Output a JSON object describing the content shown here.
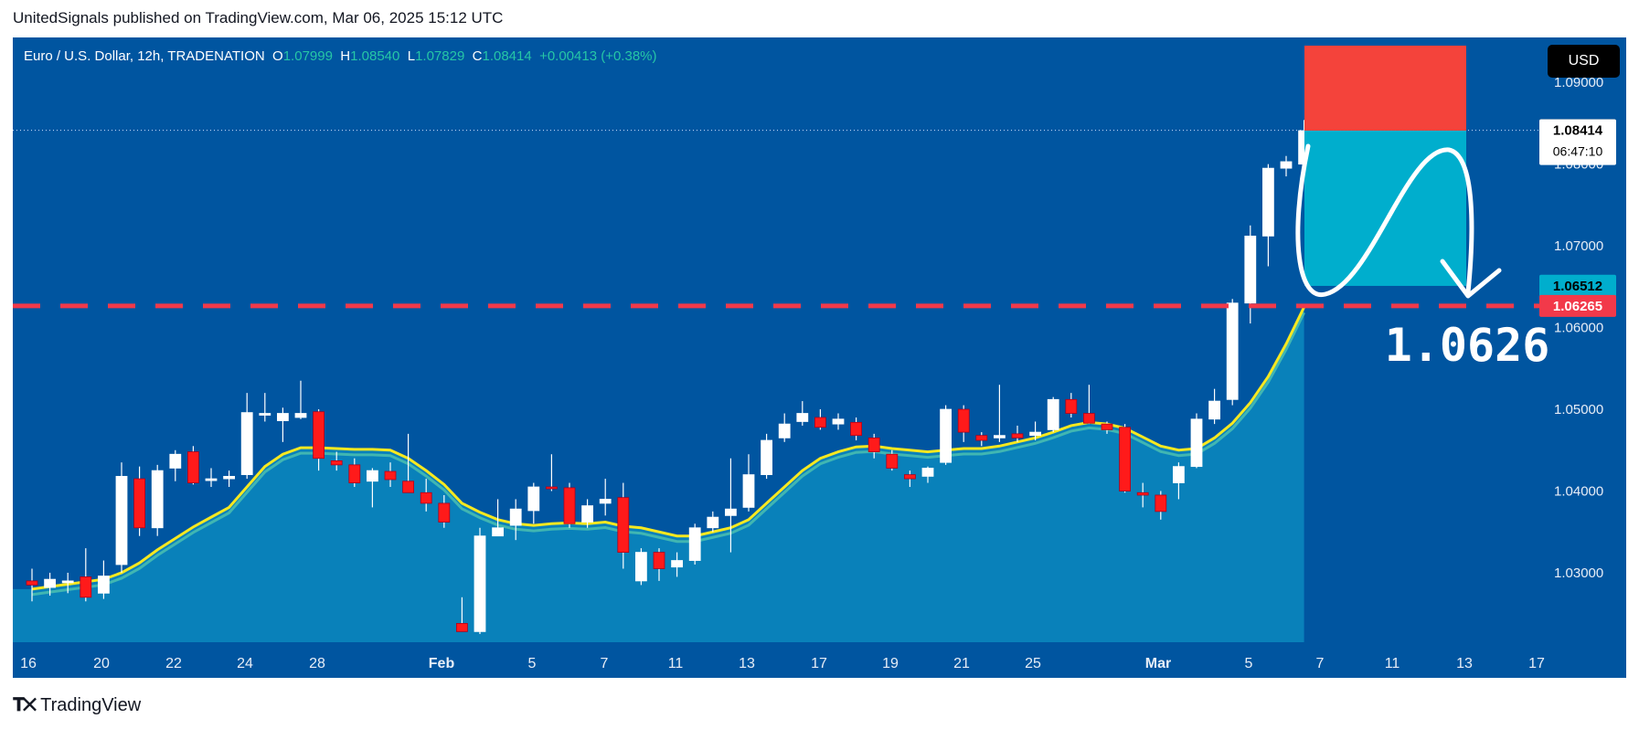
{
  "header": {
    "published_by": "UnitedSignals published on TradingView.com, Mar 06, 2025 15:12 UTC"
  },
  "symbol_bar": {
    "name": "Euro / U.S. Dollar, 12h, TRADENATION",
    "open_label": "O",
    "open": "1.07999",
    "high_label": "H",
    "high": "1.08540",
    "low_label": "L",
    "low": "1.07829",
    "close_label": "C",
    "close": "1.08414",
    "change": "+0.00413 (+0.38%)"
  },
  "currency_button": "USD",
  "footer": {
    "logo_text": "TradingView"
  },
  "colors": {
    "background": "#0055a0",
    "up_candle": "#ffffff",
    "down_candle": "#ff1a1a",
    "ma_line": "#f7e81f",
    "area_fill": "#0a86bd",
    "stop_zone": "#f4433b",
    "target_zone": "#00aecd",
    "level_line": "#f2394a"
  },
  "chart_data": {
    "type": "candlestick",
    "symbol": "EURUSD",
    "timeframe": "12h",
    "x_tick_labels": [
      "16",
      "20",
      "22",
      "24",
      "28",
      "Feb",
      "5",
      "7",
      "11",
      "13",
      "17",
      "19",
      "21",
      "25",
      "Mar",
      "5",
      "7",
      "11",
      "13",
      "17"
    ],
    "y_ticks": [
      "1.03000",
      "1.04000",
      "1.05000",
      "1.06000",
      "1.07000",
      "1.08000",
      "1.09000"
    ],
    "ylim": [
      1.0215,
      1.0955
    ],
    "candles": [
      {
        "o": 1.029,
        "h": 1.0305,
        "l": 1.0265,
        "c": 1.0285
      },
      {
        "o": 1.0282,
        "h": 1.03,
        "l": 1.0272,
        "c": 1.0292
      },
      {
        "o": 1.0288,
        "h": 1.03,
        "l": 1.0275,
        "c": 1.029
      },
      {
        "o": 1.0295,
        "h": 1.033,
        "l": 1.0265,
        "c": 1.027
      },
      {
        "o": 1.0275,
        "h": 1.0315,
        "l": 1.0268,
        "c": 1.0296
      },
      {
        "o": 1.031,
        "h": 1.0435,
        "l": 1.03,
        "c": 1.0418
      },
      {
        "o": 1.0415,
        "h": 1.043,
        "l": 1.0345,
        "c": 1.0355
      },
      {
        "o": 1.0355,
        "h": 1.0432,
        "l": 1.0345,
        "c": 1.0425
      },
      {
        "o": 1.0428,
        "h": 1.045,
        "l": 1.0412,
        "c": 1.0445
      },
      {
        "o": 1.0448,
        "h": 1.0455,
        "l": 1.0408,
        "c": 1.041
      },
      {
        "o": 1.0413,
        "h": 1.0428,
        "l": 1.0405,
        "c": 1.0415
      },
      {
        "o": 1.0415,
        "h": 1.0425,
        "l": 1.0405,
        "c": 1.0418
      },
      {
        "o": 1.042,
        "h": 1.052,
        "l": 1.0415,
        "c": 1.0496
      },
      {
        "o": 1.0495,
        "h": 1.052,
        "l": 1.0485,
        "c": 1.0495
      },
      {
        "o": 1.0486,
        "h": 1.0502,
        "l": 1.046,
        "c": 1.0495
      },
      {
        "o": 1.049,
        "h": 1.0535,
        "l": 1.0488,
        "c": 1.0495
      },
      {
        "o": 1.0497,
        "h": 1.05,
        "l": 1.0425,
        "c": 1.044
      },
      {
        "o": 1.0437,
        "h": 1.0448,
        "l": 1.0425,
        "c": 1.0432
      },
      {
        "o": 1.0432,
        "h": 1.044,
        "l": 1.0405,
        "c": 1.041
      },
      {
        "o": 1.0412,
        "h": 1.0428,
        "l": 1.038,
        "c": 1.0425
      },
      {
        "o": 1.0424,
        "h": 1.0435,
        "l": 1.0405,
        "c": 1.0414
      },
      {
        "o": 1.0412,
        "h": 1.047,
        "l": 1.0405,
        "c": 1.0398
      },
      {
        "o": 1.0398,
        "h": 1.0415,
        "l": 1.0375,
        "c": 1.0385
      },
      {
        "o": 1.0385,
        "h": 1.0395,
        "l": 1.0355,
        "c": 1.0362
      },
      {
        "o": 1.0238,
        "h": 1.027,
        "l": 1.023,
        "c": 1.0228
      },
      {
        "o": 1.0228,
        "h": 1.0355,
        "l": 1.0225,
        "c": 1.0345
      },
      {
        "o": 1.0345,
        "h": 1.039,
        "l": 1.0345,
        "c": 1.0355
      },
      {
        "o": 1.0358,
        "h": 1.039,
        "l": 1.034,
        "c": 1.0378
      },
      {
        "o": 1.0376,
        "h": 1.041,
        "l": 1.036,
        "c": 1.0405
      },
      {
        "o": 1.0405,
        "h": 1.0445,
        "l": 1.04,
        "c": 1.0404
      },
      {
        "o": 1.0404,
        "h": 1.041,
        "l": 1.0355,
        "c": 1.036
      },
      {
        "o": 1.0362,
        "h": 1.039,
        "l": 1.0355,
        "c": 1.0382
      },
      {
        "o": 1.0385,
        "h": 1.0415,
        "l": 1.037,
        "c": 1.039
      },
      {
        "o": 1.0392,
        "h": 1.041,
        "l": 1.0305,
        "c": 1.0325
      },
      {
        "o": 1.029,
        "h": 1.033,
        "l": 1.0285,
        "c": 1.0325
      },
      {
        "o": 1.0325,
        "h": 1.033,
        "l": 1.029,
        "c": 1.0305
      },
      {
        "o": 1.0307,
        "h": 1.0325,
        "l": 1.0295,
        "c": 1.0315
      },
      {
        "o": 1.0315,
        "h": 1.036,
        "l": 1.031,
        "c": 1.0355
      },
      {
        "o": 1.0355,
        "h": 1.0375,
        "l": 1.035,
        "c": 1.0368
      },
      {
        "o": 1.037,
        "h": 1.044,
        "l": 1.0325,
        "c": 1.0378
      },
      {
        "o": 1.038,
        "h": 1.0445,
        "l": 1.0375,
        "c": 1.042
      },
      {
        "o": 1.042,
        "h": 1.047,
        "l": 1.0415,
        "c": 1.0462
      },
      {
        "o": 1.0465,
        "h": 1.0495,
        "l": 1.046,
        "c": 1.0482
      },
      {
        "o": 1.0485,
        "h": 1.051,
        "l": 1.048,
        "c": 1.0495
      },
      {
        "o": 1.049,
        "h": 1.05,
        "l": 1.0475,
        "c": 1.0478
      },
      {
        "o": 1.0482,
        "h": 1.0495,
        "l": 1.0475,
        "c": 1.0488
      },
      {
        "o": 1.0484,
        "h": 1.049,
        "l": 1.0462,
        "c": 1.0468
      },
      {
        "o": 1.0465,
        "h": 1.047,
        "l": 1.044,
        "c": 1.0448
      },
      {
        "o": 1.0445,
        "h": 1.045,
        "l": 1.0425,
        "c": 1.0428
      },
      {
        "o": 1.042,
        "h": 1.0425,
        "l": 1.0405,
        "c": 1.0415
      },
      {
        "o": 1.0418,
        "h": 1.043,
        "l": 1.041,
        "c": 1.0428
      },
      {
        "o": 1.0435,
        "h": 1.0505,
        "l": 1.0432,
        "c": 1.05
      },
      {
        "o": 1.05,
        "h": 1.0505,
        "l": 1.046,
        "c": 1.0472
      },
      {
        "o": 1.0468,
        "h": 1.0472,
        "l": 1.0455,
        "c": 1.0462
      },
      {
        "o": 1.0465,
        "h": 1.053,
        "l": 1.046,
        "c": 1.0468
      },
      {
        "o": 1.047,
        "h": 1.048,
        "l": 1.046,
        "c": 1.0465
      },
      {
        "o": 1.0468,
        "h": 1.0485,
        "l": 1.0462,
        "c": 1.0472
      },
      {
        "o": 1.0475,
        "h": 1.0515,
        "l": 1.0472,
        "c": 1.0512
      },
      {
        "o": 1.0512,
        "h": 1.052,
        "l": 1.049,
        "c": 1.0495
      },
      {
        "o": 1.0495,
        "h": 1.053,
        "l": 1.0482,
        "c": 1.0483
      },
      {
        "o": 1.0482,
        "h": 1.0485,
        "l": 1.047,
        "c": 1.0475
      },
      {
        "o": 1.0478,
        "h": 1.0482,
        "l": 1.0398,
        "c": 1.04
      },
      {
        "o": 1.0398,
        "h": 1.041,
        "l": 1.038,
        "c": 1.0395
      },
      {
        "o": 1.0395,
        "h": 1.04,
        "l": 1.0365,
        "c": 1.0375
      },
      {
        "o": 1.041,
        "h": 1.0435,
        "l": 1.039,
        "c": 1.043
      },
      {
        "o": 1.043,
        "h": 1.0495,
        "l": 1.0428,
        "c": 1.0488
      },
      {
        "o": 1.0488,
        "h": 1.0525,
        "l": 1.0482,
        "c": 1.051
      },
      {
        "o": 1.0512,
        "h": 1.0635,
        "l": 1.0505,
        "c": 1.063
      },
      {
        "o": 1.063,
        "h": 1.0725,
        "l": 1.0605,
        "c": 1.0712
      },
      {
        "o": 1.0712,
        "h": 1.08,
        "l": 1.0675,
        "c": 1.0795
      },
      {
        "o": 1.0795,
        "h": 1.081,
        "l": 1.0785,
        "c": 1.0803
      },
      {
        "o": 1.08,
        "h": 1.0854,
        "l": 1.0783,
        "c": 1.0841
      }
    ],
    "moving_average": [
      1.028,
      1.0283,
      1.0286,
      1.0289,
      1.0292,
      1.03,
      1.0312,
      1.0328,
      1.0342,
      1.0356,
      1.0368,
      1.038,
      1.0405,
      1.043,
      1.0445,
      1.0453,
      1.0453,
      1.0452,
      1.0451,
      1.0451,
      1.045,
      1.044,
      1.0425,
      1.0408,
      1.0385,
      1.0374,
      1.0365,
      1.036,
      1.0358,
      1.036,
      1.0361,
      1.036,
      1.0362,
      1.0357,
      1.0355,
      1.035,
      1.0345,
      1.0345,
      1.035,
      1.0355,
      1.0365,
      1.0385,
      1.0405,
      1.0425,
      1.044,
      1.0448,
      1.0454,
      1.0455,
      1.0452,
      1.045,
      1.0448,
      1.045,
      1.0452,
      1.0452,
      1.0455,
      1.046,
      1.0465,
      1.0472,
      1.048,
      1.0484,
      1.0482,
      1.0477,
      1.0466,
      1.0455,
      1.045,
      1.0452,
      1.0465,
      1.0483,
      1.0508,
      1.054,
      1.058,
      1.0625
    ],
    "levels": {
      "dashed_level": 1.06265,
      "current_price_tag": 1.08417,
      "last_close": 1.08414,
      "countdown": "06:47:10",
      "target_label": 1.06512
    },
    "trade_zone": {
      "stop_top": 1.0945,
      "entry": 1.0841,
      "target": 1.0651
    },
    "annotation_text": "1.0626"
  }
}
